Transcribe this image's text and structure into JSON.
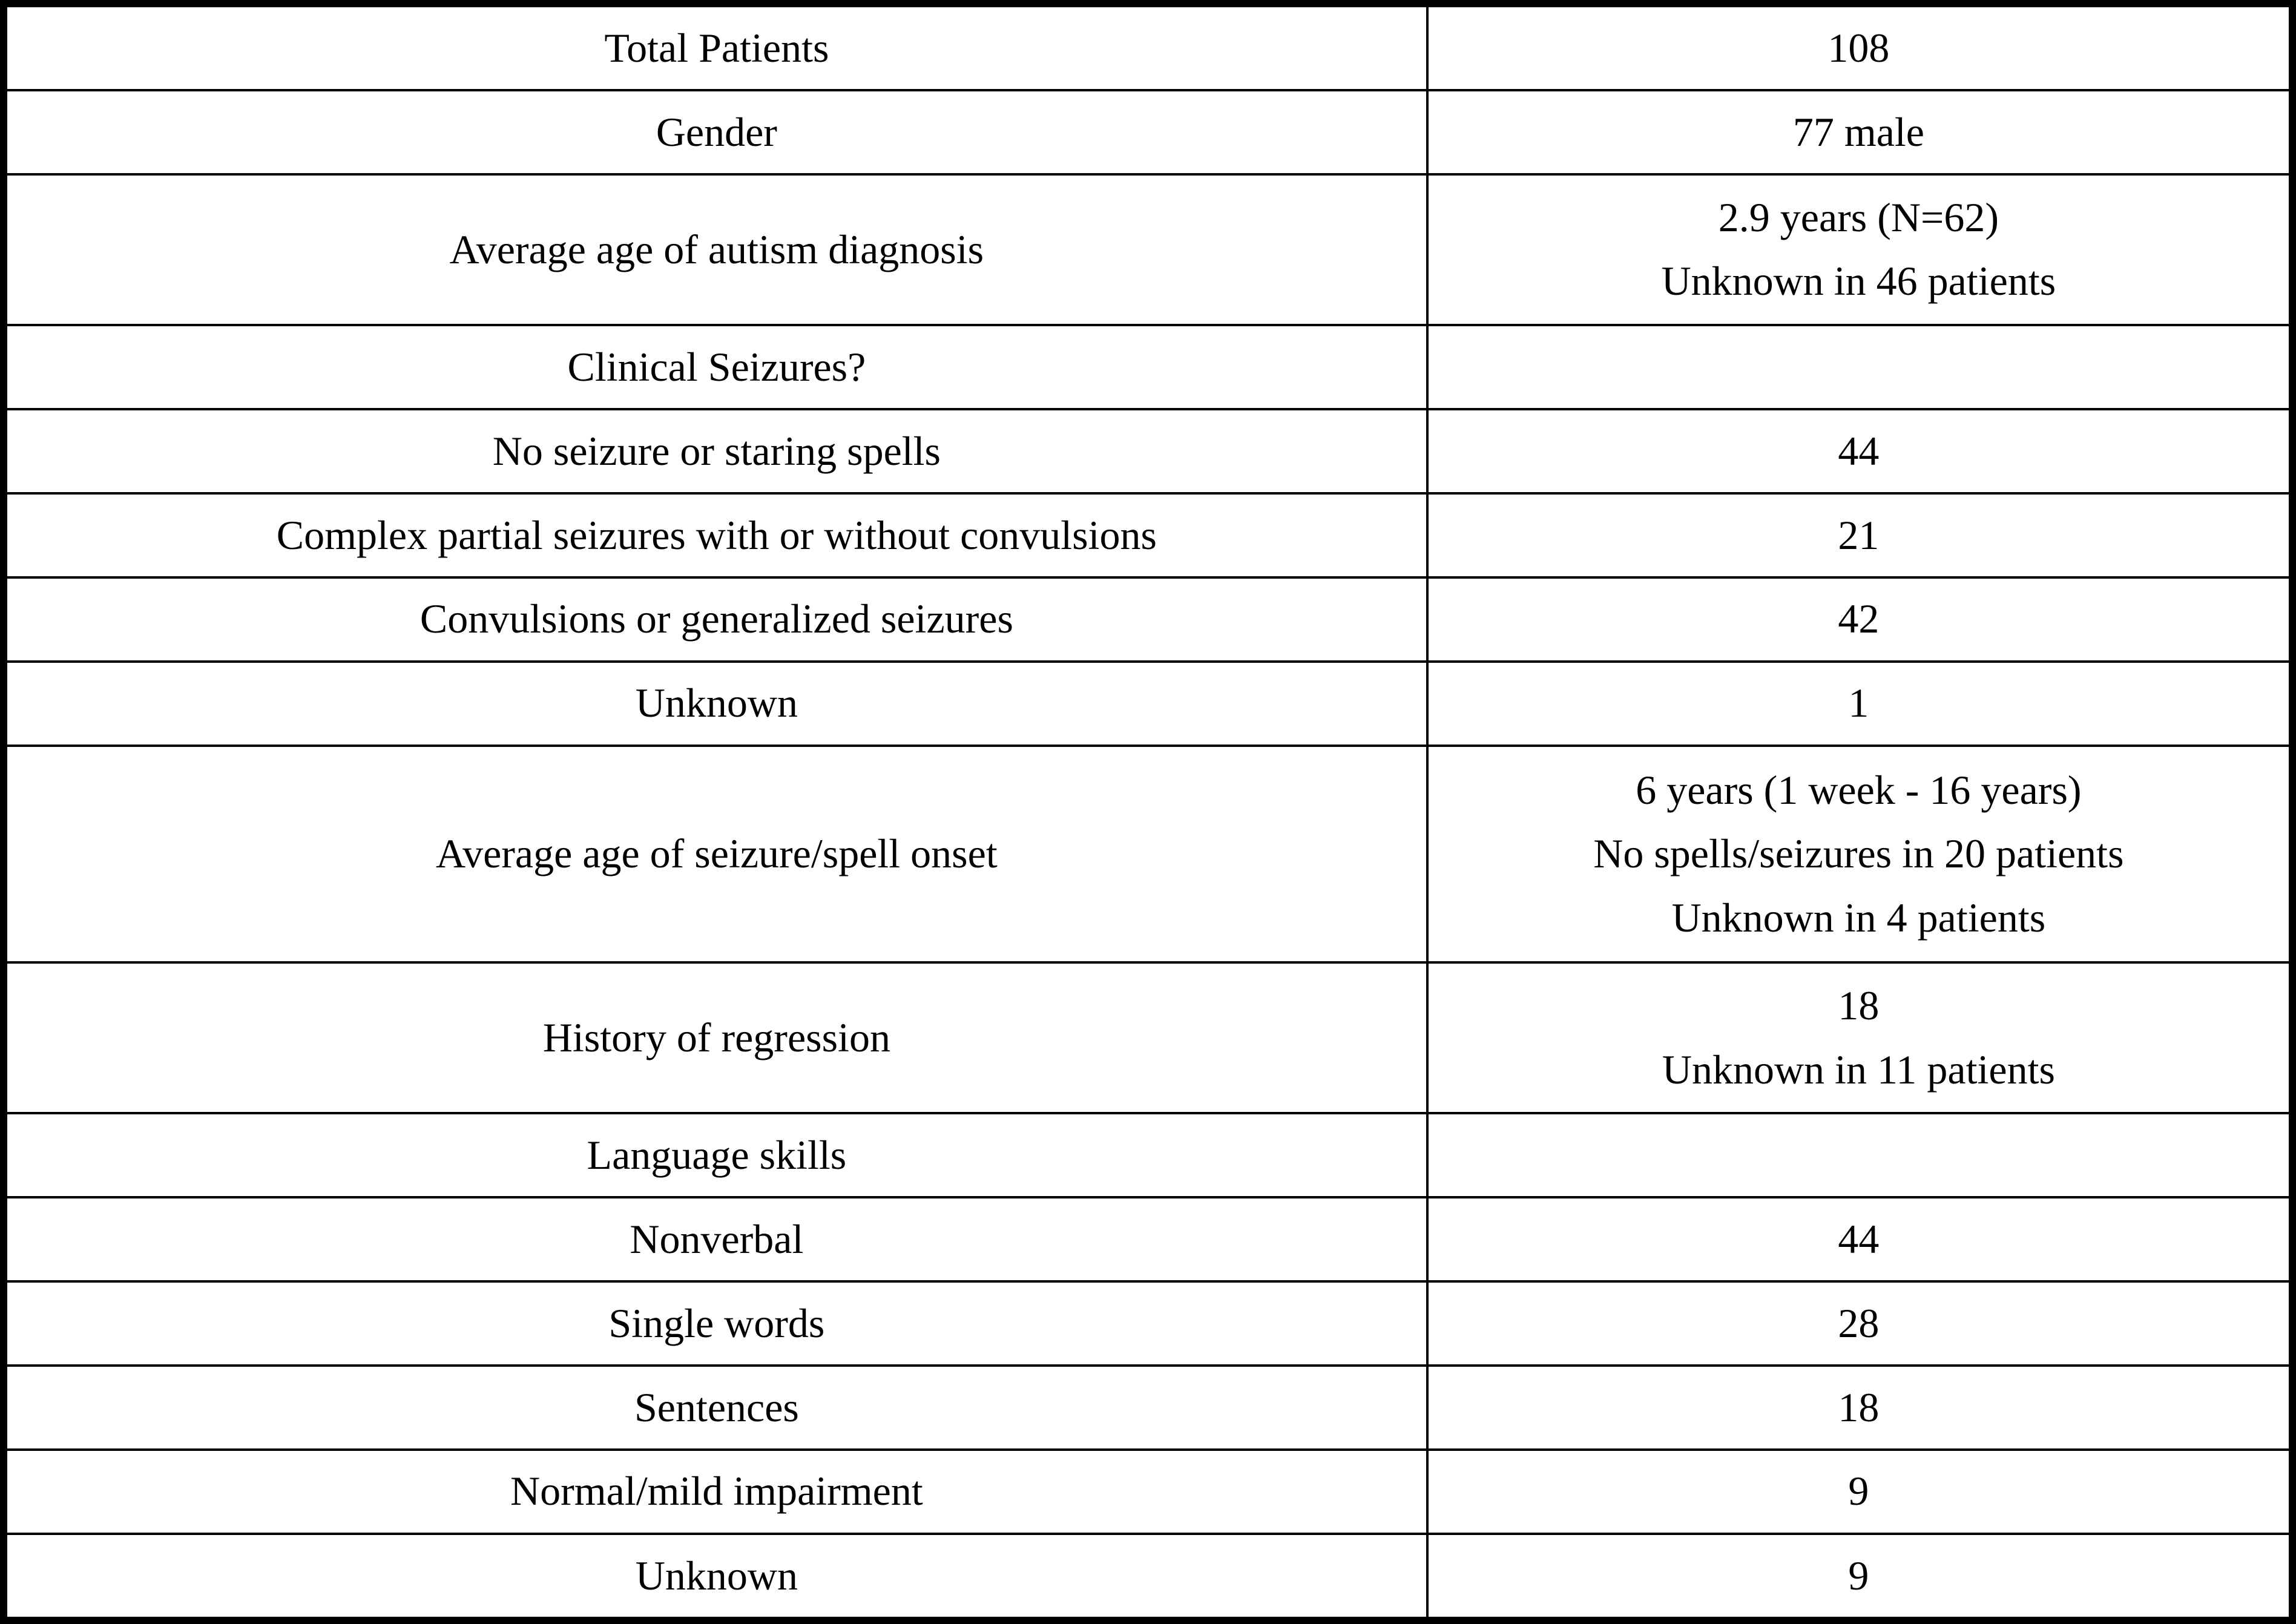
{
  "table": {
    "rows": [
      {
        "label": "Total Patients",
        "value": "108"
      },
      {
        "label": "Gender",
        "value": "77 male"
      },
      {
        "label": "Average age of autism diagnosis",
        "value": [
          "2.9 years (N=62)",
          "Unknown in 46 patients"
        ]
      },
      {
        "label": "Clinical Seizures?",
        "value": ""
      },
      {
        "label": "No seizure or staring spells",
        "value": "44"
      },
      {
        "label": "Complex partial seizures with or without convulsions",
        "value": "21"
      },
      {
        "label": "Convulsions or generalized seizures",
        "value": "42"
      },
      {
        "label": "Unknown",
        "value": "1"
      },
      {
        "label": "Average age of seizure/spell onset",
        "value": [
          "6 years (1 week - 16 years)",
          "No spells/seizures in 20 patients",
          "Unknown in 4 patients"
        ]
      },
      {
        "label": "History of regression",
        "value": [
          "18",
          "Unknown in 11 patients"
        ]
      },
      {
        "label": "Language skills",
        "value": ""
      },
      {
        "label": "Nonverbal",
        "value": "44"
      },
      {
        "label": "Single words",
        "value": "28"
      },
      {
        "label": "Sentences",
        "value": "18"
      },
      {
        "label": "Normal/mild impairment",
        "value": "9"
      },
      {
        "label": "Unknown",
        "value": "9"
      }
    ]
  },
  "colors": {
    "border": "#000000",
    "text": "#000000",
    "background": "#ffffff"
  }
}
